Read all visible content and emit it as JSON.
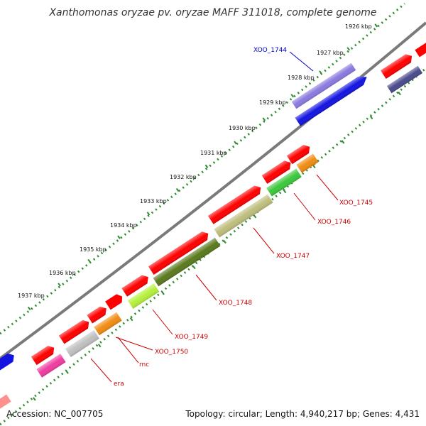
{
  "title": "Xanthomonas oryzae pv. oryzae MAFF 311018, complete genome",
  "footer": {
    "accession": "Accession: NC_007705",
    "summary": "Topology: circular; Length: 4,940,217 bp; Genes: 4,431"
  },
  "colors": {
    "backbone": "#7a7a7a",
    "ticks": "#2e8b2e",
    "label_blue": "#0000cc",
    "label_red": "#cc0000"
  },
  "kbp_ticks": [
    "1926 kbp",
    "1927 kbp",
    "1928 kbp",
    "1929 kbp",
    "1930 kbp",
    "1931 kbp",
    "1932 kbp",
    "1933 kbp",
    "1934 kbp",
    "1935 kbp",
    "1936 kbp",
    "1937 kbp"
  ],
  "gene_labels": [
    {
      "name": "XOO_1744",
      "color": "blue"
    },
    {
      "name": "XOO_1745",
      "color": "red"
    },
    {
      "name": "XOO_1746",
      "color": "red"
    },
    {
      "name": "XOO_1747",
      "color": "red"
    },
    {
      "name": "XOO_1748",
      "color": "red"
    },
    {
      "name": "XOO_1749",
      "color": "red"
    },
    {
      "name": "XOO_1750",
      "color": "red"
    },
    {
      "name": "rnc",
      "color": "red"
    },
    {
      "name": "era",
      "color": "red"
    }
  ],
  "feature_colors": [
    "#ff0000",
    "#8a7ae0",
    "#1414e0",
    "#4a4a8c",
    "#f08c14",
    "#3cc83c",
    "#bebe7e",
    "#5a7a1e",
    "#b4f03c",
    "#c0c0c0",
    "#f03ca0",
    "#ff9090"
  ]
}
